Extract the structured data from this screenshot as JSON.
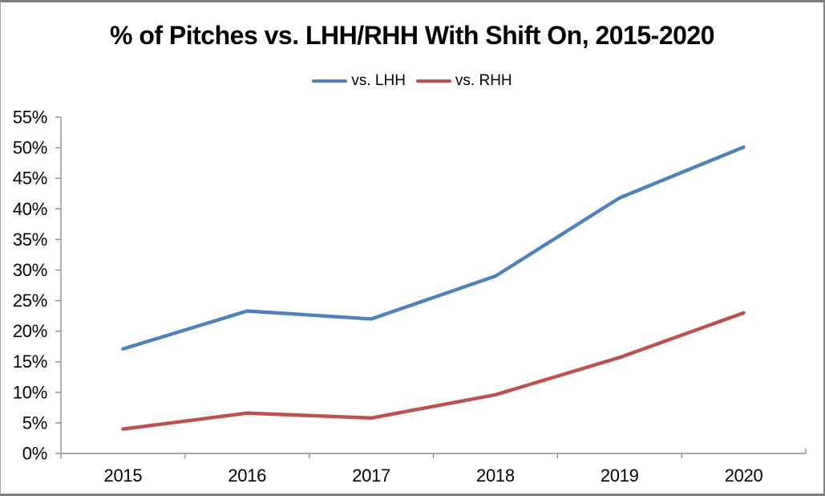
{
  "window": {
    "background": "#ffffff",
    "border_color": "#7d7d7d"
  },
  "chart_data": {
    "type": "line",
    "title": "% of Pitches vs. LHH/RHH With Shift On, 2015-2020",
    "categories": [
      "2015",
      "2016",
      "2017",
      "2018",
      "2019",
      "2020"
    ],
    "series": [
      {
        "name": "vs. LHH",
        "color": "#4F81BD",
        "values": [
          17.1,
          23.3,
          22.0,
          29.0,
          41.8,
          50.1
        ]
      },
      {
        "name": "vs. RHH",
        "color": "#C0504D",
        "values": [
          4.0,
          6.6,
          5.8,
          9.6,
          15.7,
          23.0
        ]
      }
    ],
    "xlabel": "",
    "ylabel": "",
    "ylim": [
      0,
      55
    ],
    "y_tick_step": 5,
    "y_tick_labels": [
      "0%",
      "5%",
      "10%",
      "15%",
      "20%",
      "25%",
      "30%",
      "35%",
      "40%",
      "45%",
      "50%",
      "55%"
    ],
    "y_tick_format": "percent",
    "legend_position": "top-center",
    "grid": false,
    "axis_color": "#8e8e8e",
    "label_color": "#000000"
  }
}
